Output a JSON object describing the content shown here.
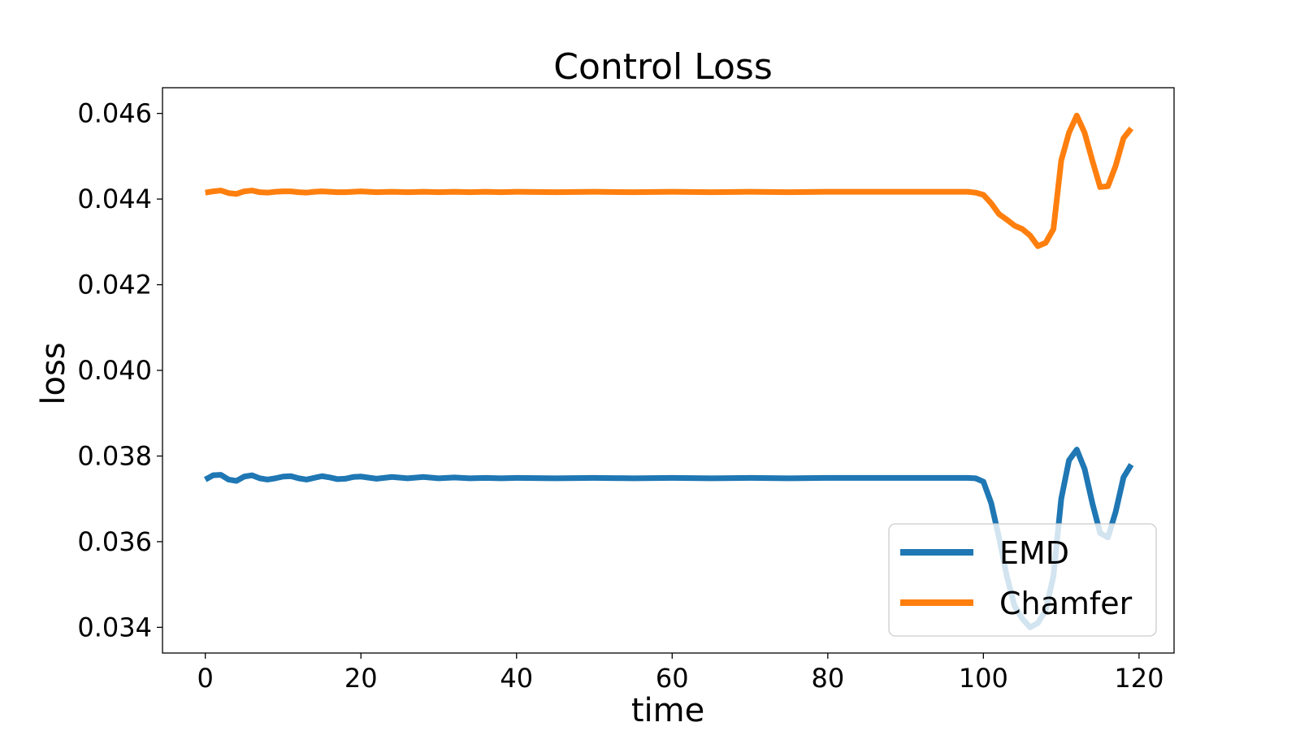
{
  "chart_data": {
    "type": "line",
    "title": "Control Loss",
    "xlabel": "time",
    "ylabel": "loss",
    "xlim": [
      -5.5,
      124.5
    ],
    "ylim": [
      0.0334,
      0.0466
    ],
    "xticks": [
      0,
      20,
      40,
      60,
      80,
      100,
      120
    ],
    "yticks": [
      0.034,
      0.036,
      0.038,
      0.04,
      0.042,
      0.044,
      0.046
    ],
    "xtick_labels": [
      "0",
      "20",
      "40",
      "60",
      "80",
      "100",
      "120"
    ],
    "ytick_labels": [
      "0.034",
      "0.036",
      "0.038",
      "0.040",
      "0.042",
      "0.044",
      "0.046"
    ],
    "grid": false,
    "legend_position": "lower right",
    "series": [
      {
        "name": "EMD",
        "color": "#1f77b4",
        "x": [
          0,
          1,
          2,
          3,
          4,
          5,
          6,
          7,
          8,
          9,
          10,
          11,
          12,
          13,
          14,
          15,
          16,
          17,
          18,
          19,
          20,
          22,
          24,
          26,
          28,
          30,
          32,
          34,
          36,
          38,
          40,
          45,
          50,
          55,
          60,
          65,
          70,
          75,
          80,
          85,
          90,
          95,
          98,
          99,
          100,
          101,
          102,
          103,
          104,
          105,
          106,
          107,
          108,
          109,
          110,
          111,
          112,
          113,
          114,
          115,
          116,
          117,
          118,
          119
        ],
        "y": [
          0.03745,
          0.03755,
          0.03756,
          0.03745,
          0.03742,
          0.03752,
          0.03755,
          0.03748,
          0.03745,
          0.03748,
          0.03752,
          0.03753,
          0.03748,
          0.03745,
          0.03749,
          0.03753,
          0.0375,
          0.03746,
          0.03747,
          0.03751,
          0.03752,
          0.03747,
          0.03751,
          0.03748,
          0.03751,
          0.03748,
          0.0375,
          0.03748,
          0.03749,
          0.03748,
          0.03749,
          0.03748,
          0.03749,
          0.03748,
          0.03749,
          0.03748,
          0.03749,
          0.03748,
          0.03749,
          0.03749,
          0.03749,
          0.03749,
          0.03749,
          0.03748,
          0.0374,
          0.0369,
          0.0361,
          0.0352,
          0.0345,
          0.0342,
          0.034,
          0.0341,
          0.0344,
          0.0352,
          0.037,
          0.0379,
          0.03815,
          0.0377,
          0.0369,
          0.0362,
          0.0361,
          0.0367,
          0.0375,
          0.0378
        ]
      },
      {
        "name": "Chamfer",
        "color": "#ff7f0e",
        "x": [
          0,
          1,
          2,
          3,
          4,
          5,
          6,
          7,
          8,
          9,
          10,
          11,
          12,
          13,
          14,
          15,
          16,
          17,
          18,
          19,
          20,
          22,
          24,
          26,
          28,
          30,
          32,
          34,
          36,
          38,
          40,
          45,
          50,
          55,
          60,
          65,
          70,
          75,
          80,
          85,
          90,
          95,
          98,
          99,
          100,
          101,
          102,
          103,
          104,
          105,
          106,
          107,
          108,
          109,
          110,
          111,
          112,
          113,
          114,
          115,
          116,
          117,
          118,
          119
        ],
        "y": [
          0.04415,
          0.04418,
          0.0442,
          0.04414,
          0.04412,
          0.04418,
          0.0442,
          0.04416,
          0.04415,
          0.04417,
          0.04418,
          0.04418,
          0.04416,
          0.04415,
          0.04417,
          0.04418,
          0.04417,
          0.04416,
          0.04416,
          0.04417,
          0.04418,
          0.04416,
          0.04417,
          0.04416,
          0.04417,
          0.04416,
          0.04417,
          0.04416,
          0.04417,
          0.04416,
          0.04417,
          0.04416,
          0.04417,
          0.04416,
          0.04417,
          0.04416,
          0.04417,
          0.04416,
          0.04417,
          0.04417,
          0.04417,
          0.04417,
          0.04417,
          0.04415,
          0.0441,
          0.0439,
          0.04365,
          0.04352,
          0.04338,
          0.0433,
          0.04315,
          0.0429,
          0.04298,
          0.0433,
          0.0449,
          0.04555,
          0.04595,
          0.04555,
          0.0449,
          0.04428,
          0.0443,
          0.04478,
          0.04542,
          0.04565
        ]
      }
    ]
  }
}
